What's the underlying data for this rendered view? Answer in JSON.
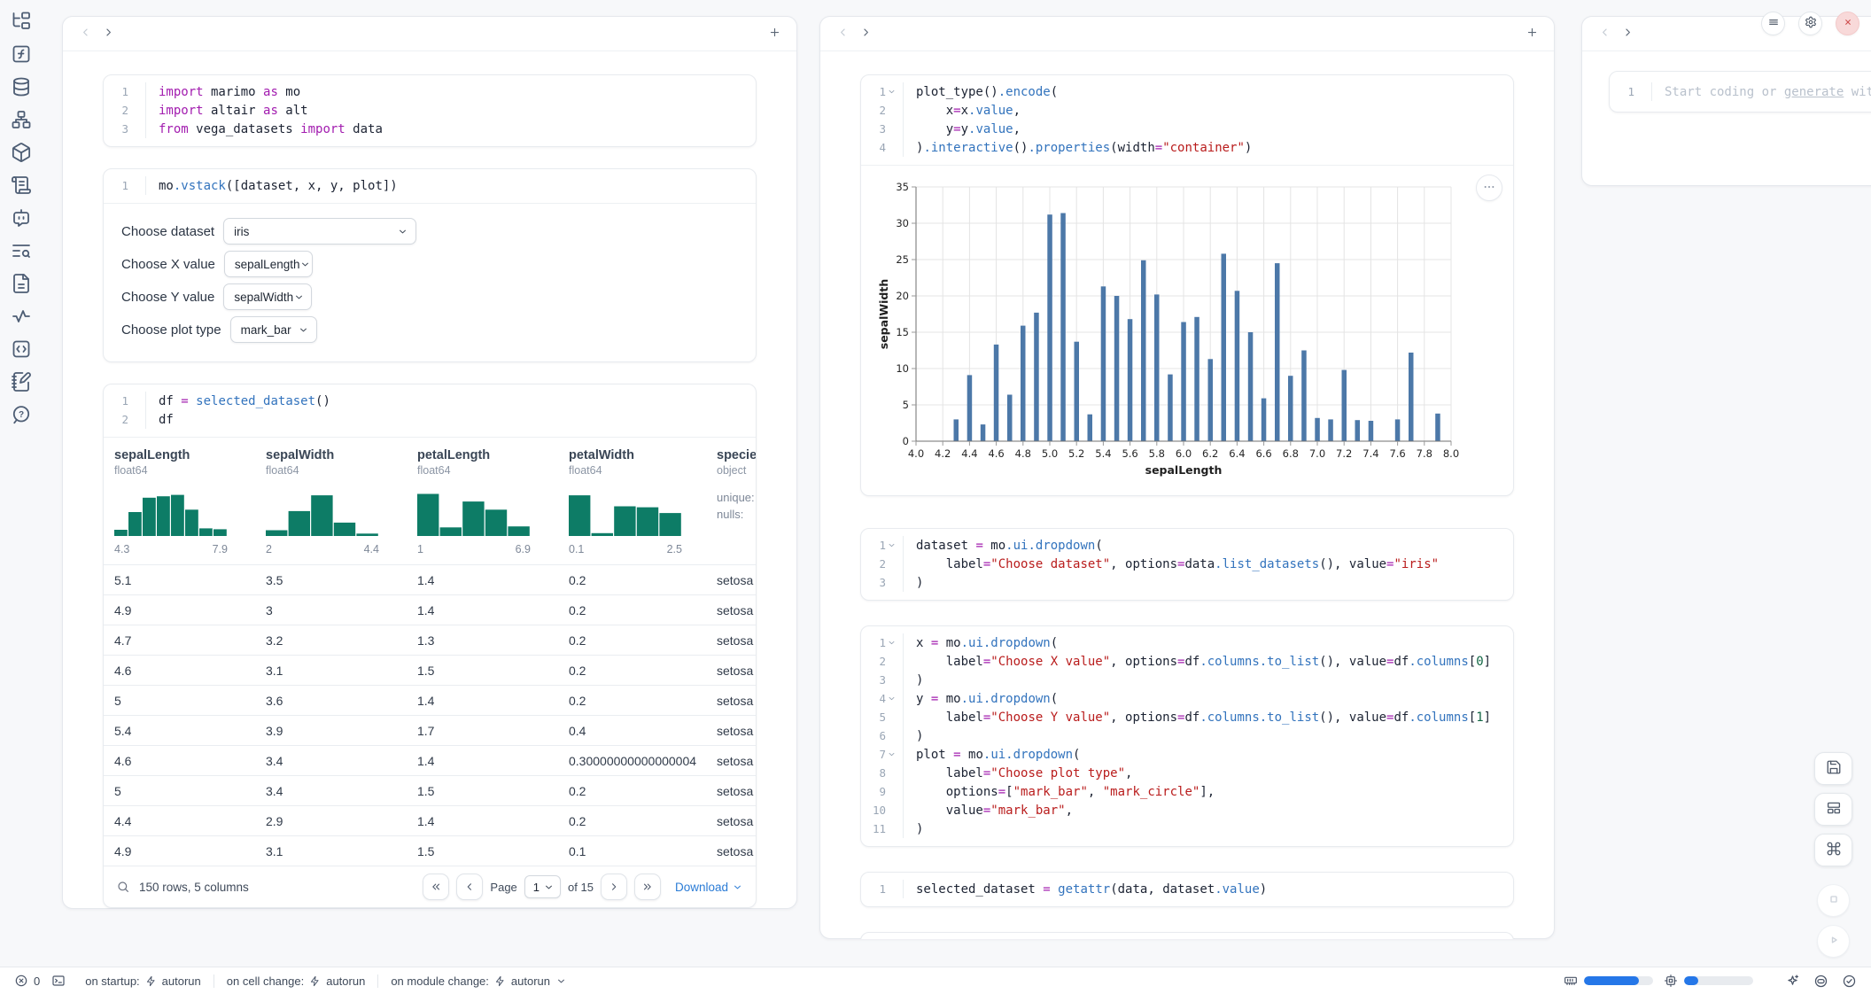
{
  "colors": {
    "hist_teal": "#0d7c66",
    "bar_blue": "#4c78a8",
    "progress_blue": "#2577e8",
    "link_blue": "#2b7cd6",
    "close_red": "#cf4b4b"
  },
  "sidebar": {
    "icons": [
      "file-tree",
      "function-square",
      "database",
      "workflow",
      "package",
      "scroll-text",
      "bot-message",
      "text-search",
      "file-text",
      "activity",
      "code-brackets",
      "notebook-pen",
      "help-circle"
    ]
  },
  "left_panel": {
    "cells": {
      "imports": {
        "folds": [],
        "lines": [
          [
            [
              "kw",
              "import"
            ],
            [
              "pl",
              " marimo "
            ],
            [
              "kw",
              "as"
            ],
            [
              "pl",
              " mo"
            ]
          ],
          [
            [
              "kw",
              "import"
            ],
            [
              "pl",
              " altair "
            ],
            [
              "kw",
              "as"
            ],
            [
              "pl",
              " alt"
            ]
          ],
          [
            [
              "kw",
              "from"
            ],
            [
              "pl",
              " vega_datasets "
            ],
            [
              "kw",
              "import"
            ],
            [
              "pl",
              " data"
            ]
          ]
        ]
      },
      "vstack": {
        "folds": [],
        "lines": [
          [
            [
              "pl",
              "mo"
            ],
            [
              "fn",
              ".vstack"
            ],
            [
              "pl",
              "([dataset, x, y, plot])"
            ]
          ]
        ]
      },
      "df": {
        "folds": [],
        "lines": [
          [
            [
              "pl",
              "df "
            ],
            [
              "op",
              "="
            ],
            [
              "pl",
              " "
            ],
            [
              "fn",
              "selected_dataset"
            ],
            [
              "pl",
              "()"
            ]
          ],
          [
            [
              "pl",
              "df"
            ]
          ]
        ]
      }
    },
    "controls": [
      {
        "id": "dataset",
        "label": "Choose dataset",
        "value": "iris"
      },
      {
        "id": "x",
        "label": "Choose X value",
        "value": "sepalLength"
      },
      {
        "id": "y",
        "label": "Choose Y value",
        "value": "sepalWidth"
      },
      {
        "id": "plot",
        "label": "Choose plot type",
        "value": "mark_bar"
      }
    ],
    "table": {
      "columns": [
        {
          "name": "sepalLength",
          "dtype": "float64",
          "min": "4.3",
          "max": "7.9",
          "hist": [
            0.13,
            0.5,
            0.8,
            0.83,
            0.86,
            0.55,
            0.16,
            0.14
          ]
        },
        {
          "name": "sepalWidth",
          "dtype": "float64",
          "min": "2",
          "max": "4.4",
          "hist": [
            0.12,
            0.52,
            0.85,
            0.28,
            0.05
          ]
        },
        {
          "name": "petalLength",
          "dtype": "float64",
          "min": "1",
          "max": "6.9",
          "hist": [
            0.88,
            0.18,
            0.72,
            0.55,
            0.2
          ]
        },
        {
          "name": "petalWidth",
          "dtype": "float64",
          "min": "0.1",
          "max": "2.5",
          "hist": [
            0.85,
            0.06,
            0.62,
            0.6,
            0.48
          ]
        },
        {
          "name": "species",
          "dtype": "object",
          "extra": [
            "unique:",
            "nulls:"
          ]
        }
      ],
      "rows": [
        [
          "5.1",
          "3.5",
          "1.4",
          "0.2",
          "setosa"
        ],
        [
          "4.9",
          "3",
          "1.4",
          "0.2",
          "setosa"
        ],
        [
          "4.7",
          "3.2",
          "1.3",
          "0.2",
          "setosa"
        ],
        [
          "4.6",
          "3.1",
          "1.5",
          "0.2",
          "setosa"
        ],
        [
          "5",
          "3.6",
          "1.4",
          "0.2",
          "setosa"
        ],
        [
          "5.4",
          "3.9",
          "1.7",
          "0.4",
          "setosa"
        ],
        [
          "4.6",
          "3.4",
          "1.4",
          "0.30000000000000004",
          "setosa"
        ],
        [
          "5",
          "3.4",
          "1.5",
          "0.2",
          "setosa"
        ],
        [
          "4.4",
          "2.9",
          "1.4",
          "0.2",
          "setosa"
        ],
        [
          "4.9",
          "3.1",
          "1.5",
          "0.1",
          "setosa"
        ]
      ],
      "footer": {
        "summary": "150 rows, 5 columns",
        "page_label": "Page",
        "page_value": "1",
        "pages_label": "of 15",
        "download_label": "Download"
      }
    }
  },
  "middle_panel": {
    "cells": {
      "plot": {
        "folds": [
          1
        ],
        "lines": [
          [
            [
              "pl",
              "plot_type()"
            ],
            [
              "fn",
              ".encode"
            ],
            [
              "pl",
              "("
            ]
          ],
          [
            [
              "pl",
              "    x"
            ],
            [
              "op",
              "="
            ],
            [
              "pl",
              "x"
            ],
            [
              "fn",
              ".value"
            ],
            [
              "pl",
              ","
            ]
          ],
          [
            [
              "pl",
              "    y"
            ],
            [
              "op",
              "="
            ],
            [
              "pl",
              "y"
            ],
            [
              "fn",
              ".value"
            ],
            [
              "pl",
              ","
            ]
          ],
          [
            [
              "pl",
              ")"
            ],
            [
              "fn",
              ".interactive"
            ],
            [
              "pl",
              "()"
            ],
            [
              "fn",
              ".properties"
            ],
            [
              "pl",
              "(width"
            ],
            [
              "op",
              "="
            ],
            [
              "st",
              "\"container\""
            ],
            [
              "pl",
              ")"
            ]
          ]
        ]
      },
      "dataset": {
        "folds": [
          1
        ],
        "lines": [
          [
            [
              "pl",
              "dataset "
            ],
            [
              "op",
              "="
            ],
            [
              "pl",
              " mo"
            ],
            [
              "fn",
              ".ui.dropdown"
            ],
            [
              "pl",
              "("
            ]
          ],
          [
            [
              "pl",
              "    label"
            ],
            [
              "op",
              "="
            ],
            [
              "st",
              "\"Choose dataset\""
            ],
            [
              "pl",
              ", options"
            ],
            [
              "op",
              "="
            ],
            [
              "pl",
              "data"
            ],
            [
              "fn",
              ".list_datasets"
            ],
            [
              "pl",
              "(), value"
            ],
            [
              "op",
              "="
            ],
            [
              "st",
              "\"iris\""
            ]
          ],
          [
            [
              "pl",
              ")"
            ]
          ]
        ]
      },
      "xyplot": {
        "folds": [
          1,
          4,
          7
        ],
        "lines": [
          [
            [
              "pl",
              "x "
            ],
            [
              "op",
              "="
            ],
            [
              "pl",
              " mo"
            ],
            [
              "fn",
              ".ui.dropdown"
            ],
            [
              "pl",
              "("
            ]
          ],
          [
            [
              "pl",
              "    label"
            ],
            [
              "op",
              "="
            ],
            [
              "st",
              "\"Choose X value\""
            ],
            [
              "pl",
              ", options"
            ],
            [
              "op",
              "="
            ],
            [
              "pl",
              "df"
            ],
            [
              "fn",
              ".columns.to_list"
            ],
            [
              "pl",
              "(), value"
            ],
            [
              "op",
              "="
            ],
            [
              "pl",
              "df"
            ],
            [
              "fn",
              ".columns"
            ],
            [
              "pl",
              "["
            ],
            [
              "nu",
              "0"
            ],
            [
              "pl",
              "]"
            ]
          ],
          [
            [
              "pl",
              ")"
            ]
          ],
          [
            [
              "pl",
              "y "
            ],
            [
              "op",
              "="
            ],
            [
              "pl",
              " mo"
            ],
            [
              "fn",
              ".ui.dropdown"
            ],
            [
              "pl",
              "("
            ]
          ],
          [
            [
              "pl",
              "    label"
            ],
            [
              "op",
              "="
            ],
            [
              "st",
              "\"Choose Y value\""
            ],
            [
              "pl",
              ", options"
            ],
            [
              "op",
              "="
            ],
            [
              "pl",
              "df"
            ],
            [
              "fn",
              ".columns.to_list"
            ],
            [
              "pl",
              "(), value"
            ],
            [
              "op",
              "="
            ],
            [
              "pl",
              "df"
            ],
            [
              "fn",
              ".columns"
            ],
            [
              "pl",
              "["
            ],
            [
              "nu",
              "1"
            ],
            [
              "pl",
              "]"
            ]
          ],
          [
            [
              "pl",
              ")"
            ]
          ],
          [
            [
              "pl",
              "plot "
            ],
            [
              "op",
              "="
            ],
            [
              "pl",
              " mo"
            ],
            [
              "fn",
              ".ui.dropdown"
            ],
            [
              "pl",
              "("
            ]
          ],
          [
            [
              "pl",
              "    label"
            ],
            [
              "op",
              "="
            ],
            [
              "st",
              "\"Choose plot type\""
            ],
            [
              "pl",
              ","
            ]
          ],
          [
            [
              "pl",
              "    options"
            ],
            [
              "op",
              "="
            ],
            [
              "pl",
              "["
            ],
            [
              "st",
              "\"mark_bar\""
            ],
            [
              "pl",
              ", "
            ],
            [
              "st",
              "\"mark_circle\""
            ],
            [
              "pl",
              "],"
            ]
          ],
          [
            [
              "pl",
              "    value"
            ],
            [
              "op",
              "="
            ],
            [
              "st",
              "\"mark_bar\""
            ],
            [
              "pl",
              ","
            ]
          ],
          [
            [
              "pl",
              ")"
            ]
          ]
        ]
      },
      "selected": {
        "folds": [],
        "lines": [
          [
            [
              "pl",
              "selected_dataset "
            ],
            [
              "op",
              "="
            ],
            [
              "pl",
              " "
            ],
            [
              "fn",
              "getattr"
            ],
            [
              "pl",
              "(data, dataset"
            ],
            [
              "fn",
              ".value"
            ],
            [
              "pl",
              ")"
            ]
          ]
        ]
      },
      "plottype": {
        "folds": [],
        "lines": [
          [
            [
              "pl",
              "plot_type "
            ],
            [
              "op",
              "="
            ],
            [
              "pl",
              " "
            ],
            [
              "fn",
              "getattr"
            ],
            [
              "pl",
              "(alt"
            ],
            [
              "fn",
              ".Chart"
            ],
            [
              "pl",
              "(df), plot"
            ],
            [
              "fn",
              ".value"
            ],
            [
              "pl",
              ")"
            ]
          ]
        ]
      }
    }
  },
  "right_panel": {
    "ai_cell": {
      "line_number": "1",
      "placeholder_prefix": "Start coding or ",
      "placeholder_link": "generate",
      "placeholder_suffix": " with AI"
    }
  },
  "chart_data": {
    "type": "bar",
    "x": [
      4.3,
      4.4,
      4.5,
      4.6,
      4.7,
      4.8,
      4.9,
      5.0,
      5.1,
      5.2,
      5.3,
      5.4,
      5.5,
      5.6,
      5.7,
      5.8,
      5.9,
      6.0,
      6.1,
      6.2,
      6.3,
      6.4,
      6.5,
      6.6,
      6.7,
      6.8,
      6.9,
      7.0,
      7.1,
      7.2,
      7.3,
      7.4,
      7.6,
      7.7,
      7.9
    ],
    "values": [
      3.0,
      9.1,
      2.3,
      13.3,
      6.4,
      15.9,
      17.7,
      31.2,
      31.4,
      13.7,
      3.7,
      21.3,
      20.0,
      16.8,
      24.9,
      20.2,
      9.2,
      16.4,
      17.1,
      11.3,
      25.8,
      20.7,
      15.0,
      5.9,
      24.5,
      9.0,
      12.5,
      3.2,
      3.0,
      9.8,
      2.9,
      2.8,
      3.0,
      12.2,
      3.8
    ],
    "xlabel": "sepalLength",
    "ylabel": "sepalWidth",
    "xlim": [
      4.0,
      8.0
    ],
    "ylim": [
      0,
      35
    ],
    "x_tick_step": 0.2,
    "y_tick_step": 5,
    "grid": true,
    "bar_color": "#4c78a8"
  },
  "status_bar": {
    "errors_count": "0",
    "groups": [
      {
        "prefix": "on startup:",
        "mode": "autorun"
      },
      {
        "prefix": "on cell change:",
        "mode": "autorun"
      },
      {
        "prefix": "on module change:",
        "mode": "autorun"
      }
    ],
    "resources": {
      "memory_pct": 80,
      "cpu_pct": 20
    }
  }
}
